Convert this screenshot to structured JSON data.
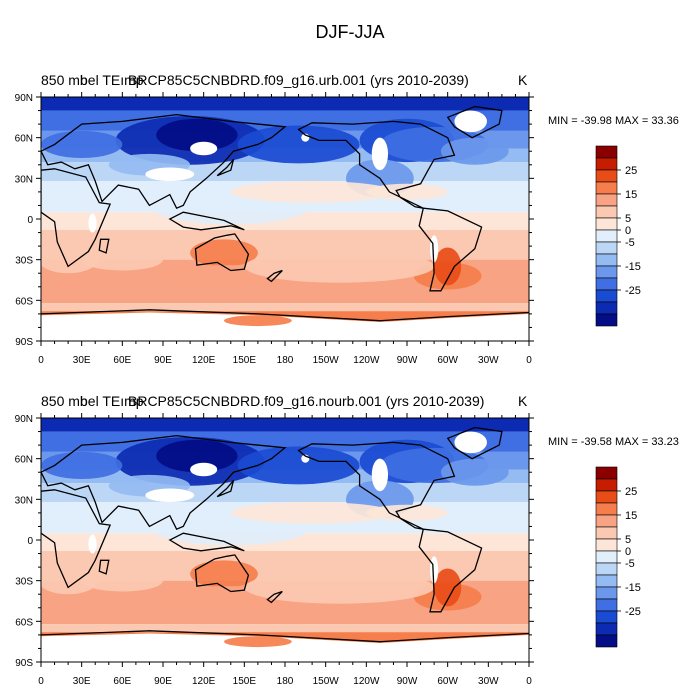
{
  "title": "DJF-JJA",
  "panels": [
    {
      "title_left": "850 mb T T850",
      "title_left_overlay": "bel TEımp",
      "case": "BRCP85C5CNBDRD.f09_g16.urb.001 (yrs 2010-2039)",
      "units": "K",
      "stats": "MIN = -39.98 MAX = 33.36"
    },
    {
      "title_left": "850 mb T T850",
      "title_left_overlay": "bel TEımp",
      "case": "BRCP85C5CNBDRD.f09_g16.nourb.001 (yrs 2010-2039)",
      "units": "K",
      "stats": "MIN = -39.58 MAX = 33.23"
    }
  ],
  "map": {
    "projection": "cylindrical-equidistant",
    "center_longitude": 180,
    "lat_ticks": [
      "90N",
      "60N",
      "30N",
      "0",
      "30S",
      "60S",
      "90S"
    ],
    "lon_ticks": [
      "0",
      "30E",
      "60E",
      "90E",
      "120E",
      "150E",
      "180",
      "150W",
      "120W",
      "90W",
      "60W",
      "30W",
      "0"
    ],
    "missing_value_color": "#ffffff"
  },
  "legend": {
    "labels": [
      "25",
      "15",
      "5",
      "0",
      "-5",
      "-15",
      "-25"
    ],
    "colors_top_to_bottom": [
      "#8a0000",
      "#c61d00",
      "#e84d18",
      "#f57e4c",
      "#f8a383",
      "#fbc9b1",
      "#fde6d8",
      "#e1eefb",
      "#bcd6f6",
      "#94bbf2",
      "#6b98ec",
      "#3f6fe2",
      "#1a4bd3",
      "#0c2ab2",
      "#020d86"
    ]
  }
}
